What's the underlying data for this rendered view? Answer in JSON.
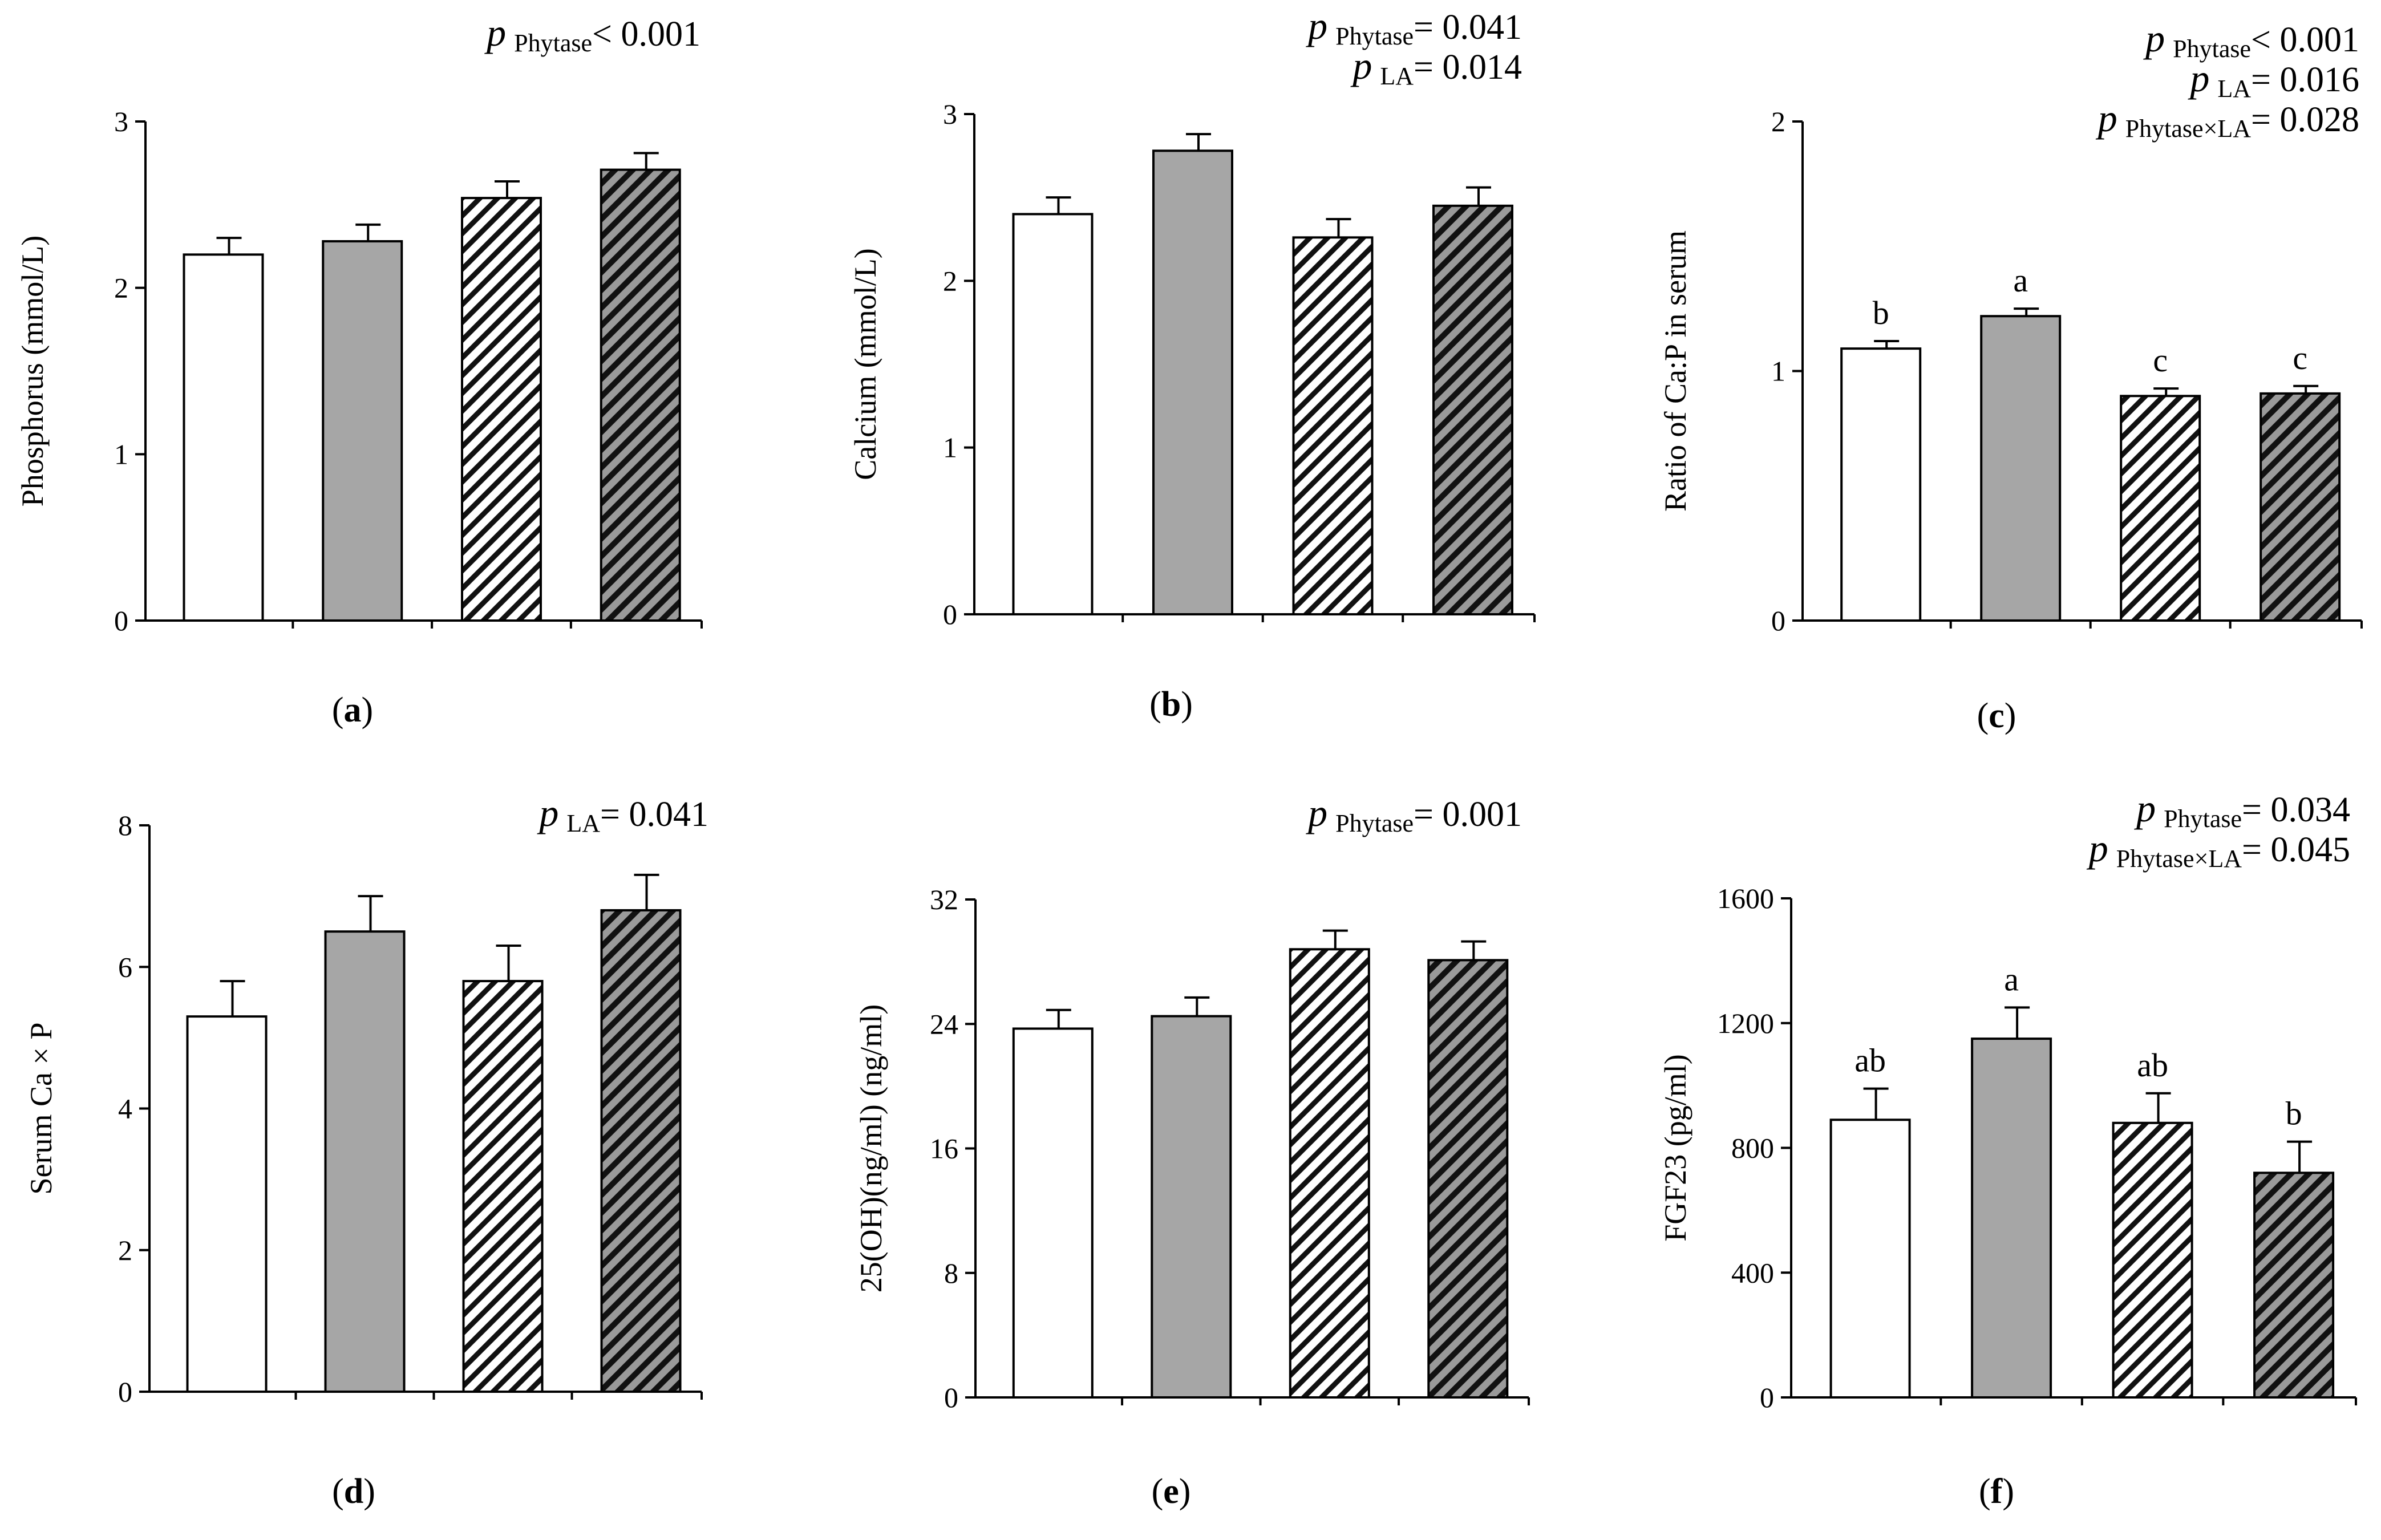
{
  "palette": {
    "ink": "#000000",
    "bar_fill": [
      "#ffffff",
      "#a6a6a6",
      "hatch-light",
      "hatch-dark"
    ]
  },
  "chart_data": [
    {
      "id": "a",
      "type": "bar",
      "panel_label": "a",
      "ylabel": "Phosphorus (mmol/L)",
      "ylim": [
        0,
        3
      ],
      "yticks": [
        0,
        1,
        2,
        3
      ],
      "ytick_labels": [
        "0",
        "1",
        "2",
        "3"
      ],
      "values": [
        2.2,
        2.28,
        2.54,
        2.71
      ],
      "errors": [
        0.1,
        0.1,
        0.1,
        0.1
      ],
      "bar_letters": [
        "",
        "",
        "",
        ""
      ],
      "annotations": [
        {
          "p": "p",
          "sub": "Phytase",
          "rest": "< 0.001"
        }
      ]
    },
    {
      "id": "b",
      "type": "bar",
      "panel_label": "b",
      "ylabel": "Calcium (mmol/L)",
      "ylim": [
        0,
        3
      ],
      "yticks": [
        0,
        1,
        2,
        3
      ],
      "ytick_labels": [
        "0",
        "1",
        "2",
        "3"
      ],
      "values": [
        2.4,
        2.78,
        2.26,
        2.45
      ],
      "errors": [
        0.1,
        0.1,
        0.11,
        0.11
      ],
      "bar_letters": [
        "",
        "",
        "",
        ""
      ],
      "annotations": [
        {
          "p": "p",
          "sub": "Phytase",
          "rest": "= 0.041"
        },
        {
          "p": "p",
          "sub": "LA",
          "rest": "= 0.014"
        }
      ]
    },
    {
      "id": "c",
      "type": "bar",
      "panel_label": "c",
      "ylabel": "Ratio of Ca:P in serum",
      "ylim": [
        0,
        2
      ],
      "yticks": [
        0,
        1,
        2
      ],
      "ytick_labels": [
        "0",
        "1",
        "2"
      ],
      "values": [
        1.09,
        1.22,
        0.9,
        0.91
      ],
      "errors": [
        0.03,
        0.03,
        0.03,
        0.03
      ],
      "bar_letters": [
        "b",
        "a",
        "c",
        "c"
      ],
      "annotations": [
        {
          "p": "p",
          "sub": "Phytase",
          "rest": "< 0.001"
        },
        {
          "p": "p",
          "sub": "LA",
          "rest": "= 0.016"
        },
        {
          "p": "p",
          "sub": "Phytase×LA",
          "rest": "= 0.028"
        }
      ]
    },
    {
      "id": "d",
      "type": "bar",
      "panel_label": "d",
      "ylabel": "Serum Ca × P",
      "ylim": [
        0,
        8
      ],
      "yticks": [
        0,
        2,
        4,
        6,
        8
      ],
      "ytick_labels": [
        "0",
        "2",
        "4",
        "6",
        "8"
      ],
      "values": [
        5.3,
        6.5,
        5.8,
        6.8
      ],
      "errors": [
        0.5,
        0.5,
        0.5,
        0.5
      ],
      "bar_letters": [
        "",
        "",
        "",
        ""
      ],
      "annotations": [
        {
          "p": "p",
          "sub": "LA",
          "rest": "= 0.041"
        }
      ]
    },
    {
      "id": "e",
      "type": "bar",
      "panel_label": "e",
      "ylabel": "25(OH)(ng/ml) (ng/ml)",
      "ylim": [
        0,
        32
      ],
      "yticks": [
        0,
        8,
        16,
        24,
        32
      ],
      "ytick_labels": [
        "0",
        "8",
        "16",
        "24",
        "32"
      ],
      "values": [
        23.7,
        24.5,
        28.8,
        28.1
      ],
      "errors": [
        1.2,
        1.2,
        1.2,
        1.2
      ],
      "bar_letters": [
        "",
        "",
        "",
        ""
      ],
      "annotations": [
        {
          "p": "p",
          "sub": "Phytase",
          "rest": "= 0.001"
        }
      ]
    },
    {
      "id": "f",
      "type": "bar",
      "panel_label": "f",
      "ylabel": "FGF23 (pg/ml)",
      "ylim": [
        0,
        1600
      ],
      "yticks": [
        0,
        400,
        800,
        1200,
        1600
      ],
      "ytick_labels": [
        "0",
        "400",
        "800",
        "1200",
        "1600"
      ],
      "values": [
        890,
        1150,
        880,
        720
      ],
      "errors": [
        100,
        100,
        95,
        100
      ],
      "bar_letters": [
        "ab",
        "a",
        "ab",
        "b"
      ],
      "annotations": [
        {
          "p": "p",
          "sub": "Phytase",
          "rest": "= 0.034"
        },
        {
          "p": "p",
          "sub": "Phytase×LA",
          "rest": "= 0.045"
        }
      ]
    }
  ]
}
